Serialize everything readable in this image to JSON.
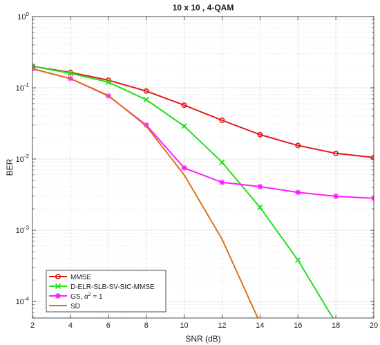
{
  "chart_data": {
    "type": "line",
    "title": "10 x 10 , 4-QAM",
    "xlabel": "SNR (dB)",
    "ylabel": "BER",
    "x_scale": "linear",
    "y_scale": "log",
    "xlim": [
      2,
      20
    ],
    "ylim": [
      6e-05,
      1
    ],
    "xticks": [
      2,
      4,
      6,
      8,
      10,
      12,
      14,
      16,
      18,
      20
    ],
    "ytick_labels": [
      {
        "value": 1,
        "base": "10",
        "exp": "0"
      },
      {
        "value": 0.1,
        "base": "10",
        "exp": "-1"
      },
      {
        "value": 0.01,
        "base": "10",
        "exp": "-2"
      },
      {
        "value": 0.001,
        "base": "10",
        "exp": "-3"
      },
      {
        "value": 0.0001,
        "base": "10",
        "exp": "-4"
      }
    ],
    "grid": true,
    "legend_position": "bottom-left",
    "series": [
      {
        "name": "MMSE",
        "color": "#e31a1c",
        "marker": "circle",
        "x": [
          2,
          4,
          6,
          8,
          10,
          12,
          14,
          16,
          18,
          20
        ],
        "y": [
          0.2,
          0.165,
          0.128,
          0.09,
          0.057,
          0.035,
          0.022,
          0.0155,
          0.012,
          0.0105
        ]
      },
      {
        "name": "D-ELR-SLB-SV-SIC-MMSE",
        "color": "#22e01a",
        "marker": "x",
        "x": [
          2,
          4,
          6,
          8,
          10,
          12,
          14,
          16,
          18
        ],
        "y": [
          0.2,
          0.16,
          0.12,
          0.068,
          0.029,
          0.009,
          0.0021,
          0.00038,
          5e-05
        ]
      },
      {
        "name_parts": [
          "GS, ",
          "α",
          "2",
          " = 1"
        ],
        "color": "#ff1aff",
        "marker": "star",
        "x": [
          2,
          4,
          6,
          8,
          10,
          12,
          14,
          16,
          18,
          20
        ],
        "y": [
          0.185,
          0.135,
          0.077,
          0.03,
          0.0075,
          0.0047,
          0.0041,
          0.0034,
          0.003,
          0.0028
        ]
      },
      {
        "name": "SD",
        "color": "#d9731a",
        "marker": "none",
        "x": [
          2,
          4,
          6,
          8,
          10,
          12,
          14
        ],
        "y": [
          0.185,
          0.135,
          0.078,
          0.029,
          0.006,
          0.00075,
          5e-05
        ]
      }
    ]
  }
}
